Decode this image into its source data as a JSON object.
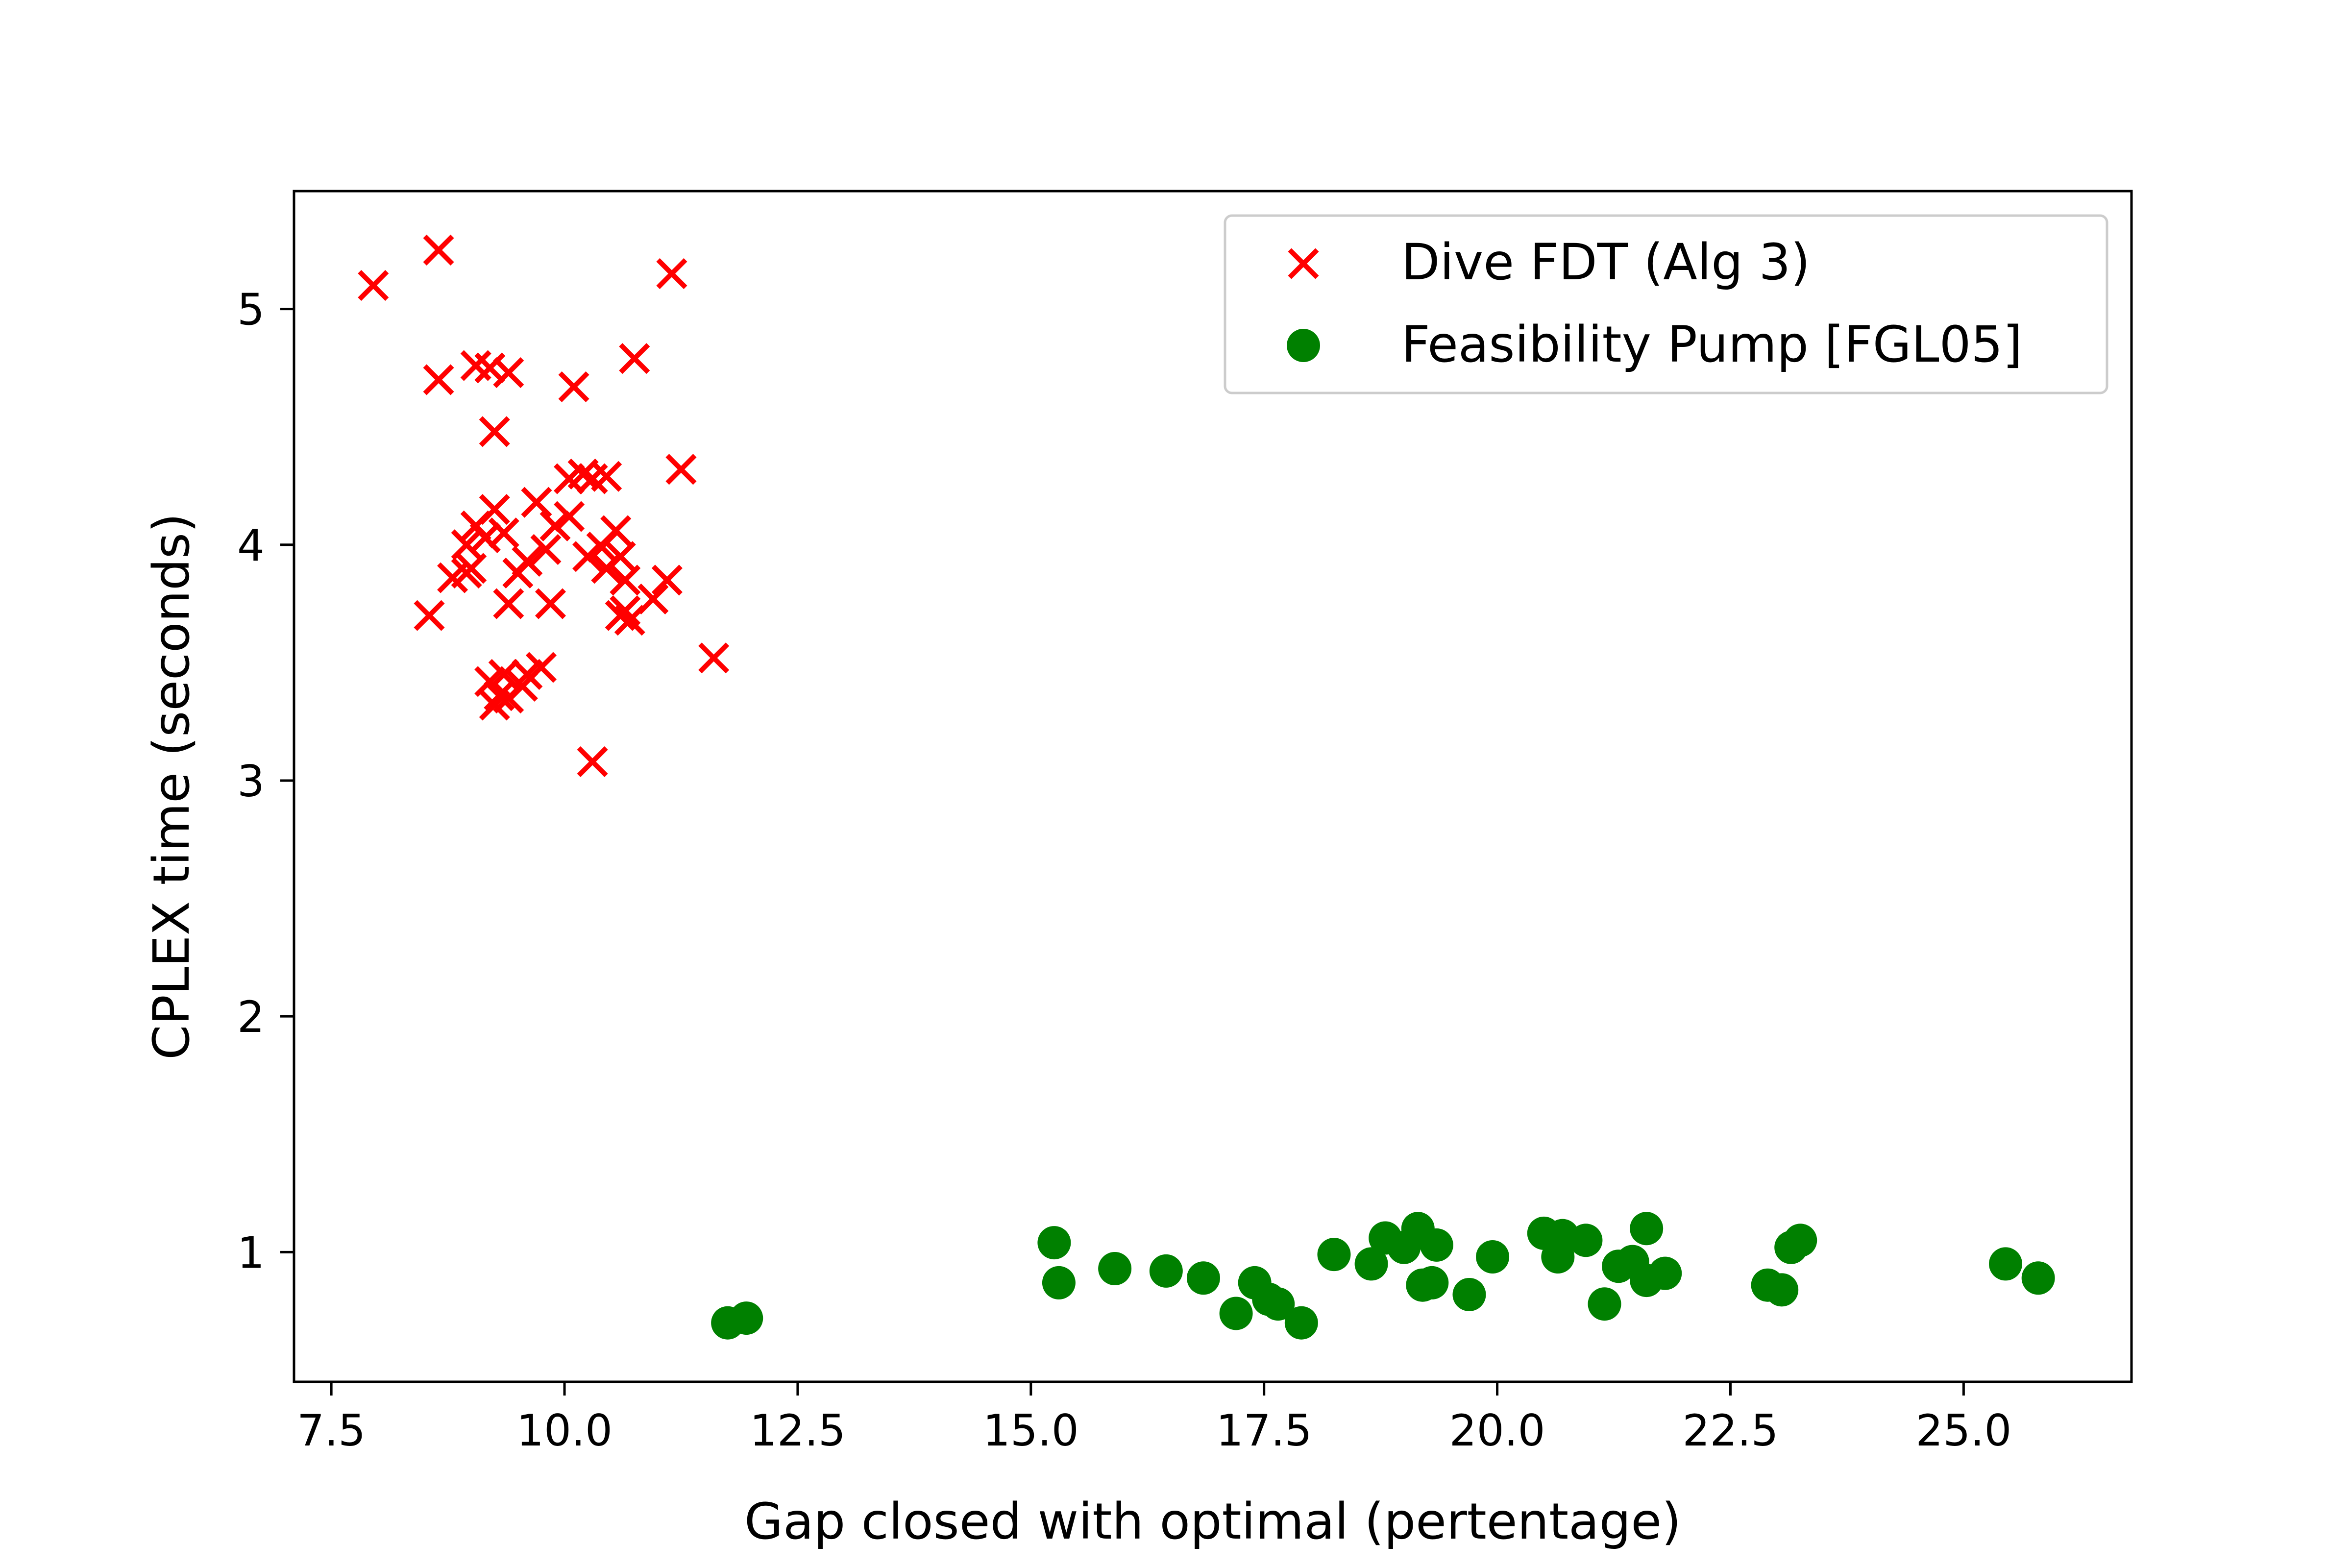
{
  "chart_data": {
    "type": "scatter",
    "title": "",
    "xlabel": "Gap closed with optimal (pertentage)",
    "ylabel": "CPLEX time (seconds)",
    "xlim": [
      7.1,
      26.8
    ],
    "ylim": [
      0.45,
      5.5
    ],
    "x_ticks": [
      7.5,
      10.0,
      12.5,
      15.0,
      17.5,
      20.0,
      22.5,
      25.0
    ],
    "x_tick_labels": [
      "7.5",
      "10.0",
      "12.5",
      "15.0",
      "17.5",
      "20.0",
      "22.5",
      "25.0"
    ],
    "y_ticks": [
      1,
      2,
      3,
      4,
      5
    ],
    "y_tick_labels": [
      "1",
      "2",
      "3",
      "4",
      "5"
    ],
    "grid": false,
    "legend_position": "top-right",
    "series": [
      {
        "name": "Dive FDT (Alg 3)",
        "marker": "x",
        "color": "#ff0000",
        "points": [
          [
            7.95,
            5.1
          ],
          [
            8.65,
            5.25
          ],
          [
            11.15,
            5.15
          ],
          [
            8.65,
            4.7
          ],
          [
            9.05,
            4.76
          ],
          [
            9.2,
            4.75
          ],
          [
            9.4,
            4.73
          ],
          [
            10.1,
            4.67
          ],
          [
            10.75,
            4.79
          ],
          [
            9.25,
            4.48
          ],
          [
            10.05,
            4.28
          ],
          [
            10.2,
            4.3
          ],
          [
            10.3,
            4.28
          ],
          [
            10.45,
            4.29
          ],
          [
            11.25,
            4.32
          ],
          [
            9.25,
            4.15
          ],
          [
            9.7,
            4.18
          ],
          [
            9.05,
            4.08
          ],
          [
            9.35,
            4.05
          ],
          [
            9.9,
            4.08
          ],
          [
            10.05,
            4.12
          ],
          [
            10.55,
            4.06
          ],
          [
            8.95,
            4.0
          ],
          [
            9.15,
            4.03
          ],
          [
            9.8,
            3.98
          ],
          [
            10.25,
            3.95
          ],
          [
            10.4,
            3.99
          ],
          [
            10.6,
            3.95
          ],
          [
            9.0,
            3.9
          ],
          [
            8.8,
            3.86
          ],
          [
            8.95,
            3.88
          ],
          [
            9.5,
            3.88
          ],
          [
            9.6,
            3.93
          ],
          [
            10.45,
            3.9
          ],
          [
            10.65,
            3.85
          ],
          [
            11.1,
            3.85
          ],
          [
            9.4,
            3.75
          ],
          [
            9.85,
            3.75
          ],
          [
            10.65,
            3.72
          ],
          [
            10.6,
            3.7
          ],
          [
            10.95,
            3.77
          ],
          [
            8.55,
            3.7
          ],
          [
            10.7,
            3.68
          ],
          [
            11.6,
            3.52
          ],
          [
            9.75,
            3.48
          ],
          [
            9.6,
            3.45
          ],
          [
            9.35,
            3.45
          ],
          [
            9.2,
            3.42
          ],
          [
            9.55,
            3.4
          ],
          [
            9.3,
            3.36
          ],
          [
            9.25,
            3.32
          ],
          [
            9.4,
            3.35
          ],
          [
            10.3,
            3.08
          ]
        ]
      },
      {
        "name": "Feasibility Pump [FGL05]",
        "marker": "o",
        "color": "#008000",
        "points": [
          [
            11.75,
            0.7
          ],
          [
            11.95,
            0.72
          ],
          [
            15.25,
            1.04
          ],
          [
            15.3,
            0.87
          ],
          [
            15.9,
            0.93
          ],
          [
            16.45,
            0.92
          ],
          [
            16.85,
            0.89
          ],
          [
            17.2,
            0.74
          ],
          [
            17.4,
            0.87
          ],
          [
            17.55,
            0.8
          ],
          [
            17.65,
            0.78
          ],
          [
            17.9,
            0.7
          ],
          [
            18.25,
            0.99
          ],
          [
            18.65,
            0.95
          ],
          [
            18.8,
            1.06
          ],
          [
            19.0,
            1.02
          ],
          [
            19.15,
            1.1
          ],
          [
            19.2,
            0.86
          ],
          [
            19.3,
            0.87
          ],
          [
            19.35,
            1.03
          ],
          [
            19.7,
            0.82
          ],
          [
            19.95,
            0.98
          ],
          [
            20.5,
            1.08
          ],
          [
            20.65,
            0.98
          ],
          [
            20.7,
            1.07
          ],
          [
            20.95,
            1.05
          ],
          [
            21.15,
            0.78
          ],
          [
            21.3,
            0.94
          ],
          [
            21.45,
            0.96
          ],
          [
            21.6,
            1.1
          ],
          [
            21.6,
            0.88
          ],
          [
            21.8,
            0.91
          ],
          [
            22.9,
            0.86
          ],
          [
            23.05,
            0.84
          ],
          [
            23.15,
            1.02
          ],
          [
            23.25,
            1.05
          ],
          [
            25.45,
            0.95
          ],
          [
            25.8,
            0.89
          ]
        ]
      }
    ]
  }
}
